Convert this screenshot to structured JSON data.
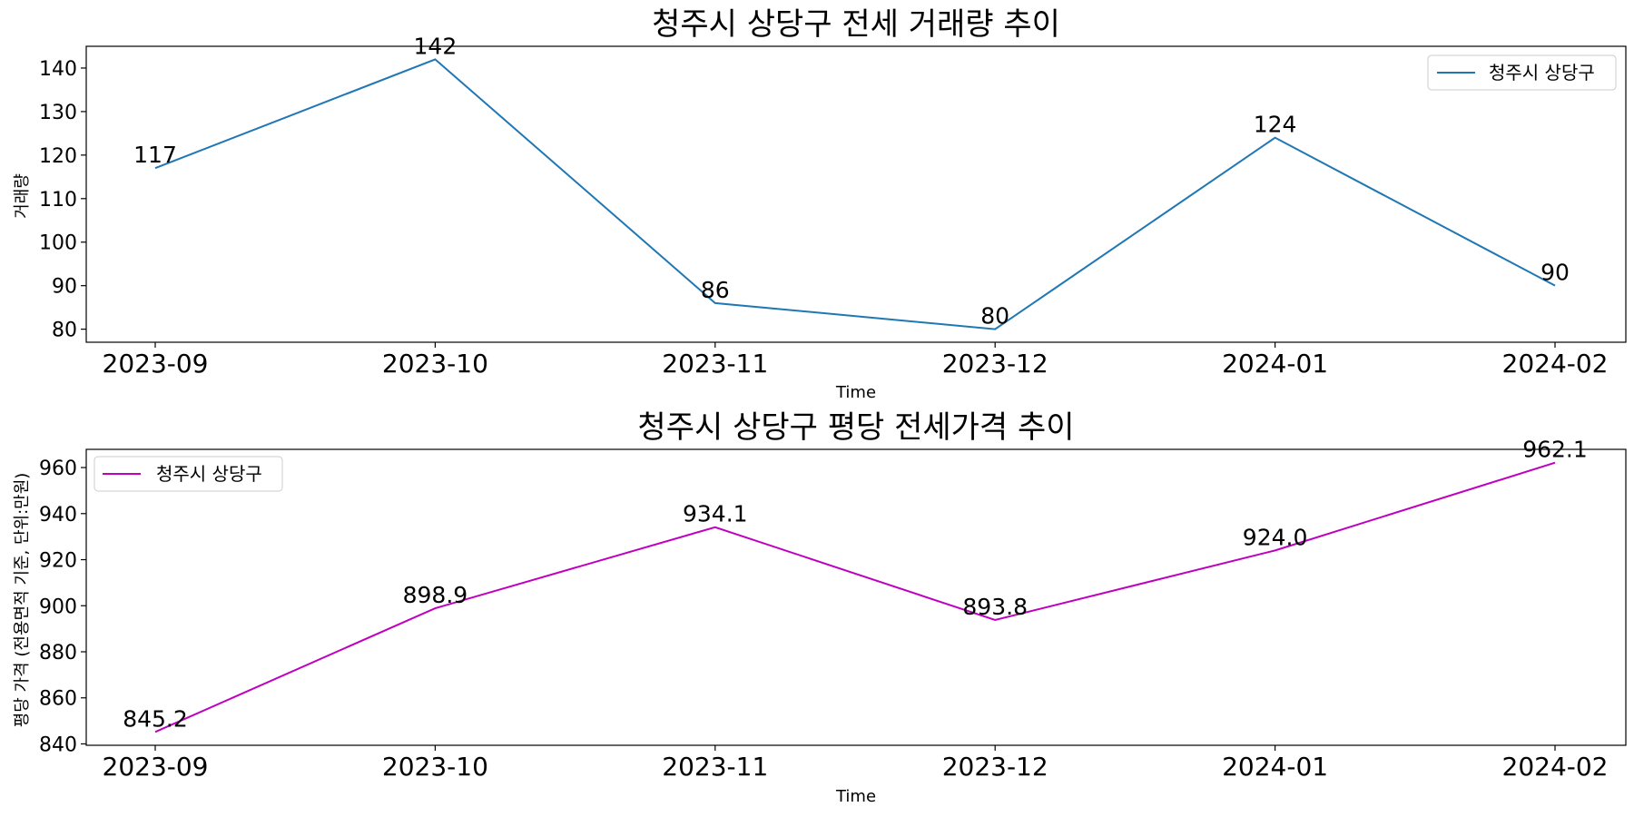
{
  "chart_data": [
    {
      "type": "line",
      "title": "청주시 상당구 전세 거래량 추이",
      "xlabel": "Time",
      "ylabel": "거래량",
      "categories": [
        "2023-09",
        "2023-10",
        "2023-11",
        "2023-12",
        "2024-01",
        "2024-02"
      ],
      "series": [
        {
          "name": "청주시 상당구",
          "values": [
            117,
            142,
            86,
            80,
            124,
            90
          ],
          "color": "#1f77b4"
        }
      ],
      "data_labels": [
        "117",
        "142",
        "86",
        "80",
        "124",
        "90"
      ],
      "ylim": [
        77,
        145
      ],
      "yticks": [
        80,
        90,
        100,
        110,
        120,
        130,
        140
      ],
      "legend": "top-right",
      "grid": false
    },
    {
      "type": "line",
      "title": "청주시 상당구 평당 전세가격 추이",
      "xlabel": "Time",
      "ylabel": "평당 가격 (전용면적 기준, 단위:만원)",
      "categories": [
        "2023-09",
        "2023-10",
        "2023-11",
        "2023-12",
        "2024-01",
        "2024-02"
      ],
      "series": [
        {
          "name": "청주시 상당구",
          "values": [
            845.2,
            898.9,
            934.1,
            893.8,
            924.0,
            962.1
          ],
          "color": "#bf00bf"
        }
      ],
      "data_labels": [
        "845.2",
        "898.9",
        "934.1",
        "893.8",
        "924.0",
        "962.1"
      ],
      "ylim": [
        839.4,
        967.9
      ],
      "yticks": [
        840,
        860,
        880,
        900,
        920,
        940,
        960
      ],
      "legend": "top-left",
      "grid": false
    }
  ]
}
